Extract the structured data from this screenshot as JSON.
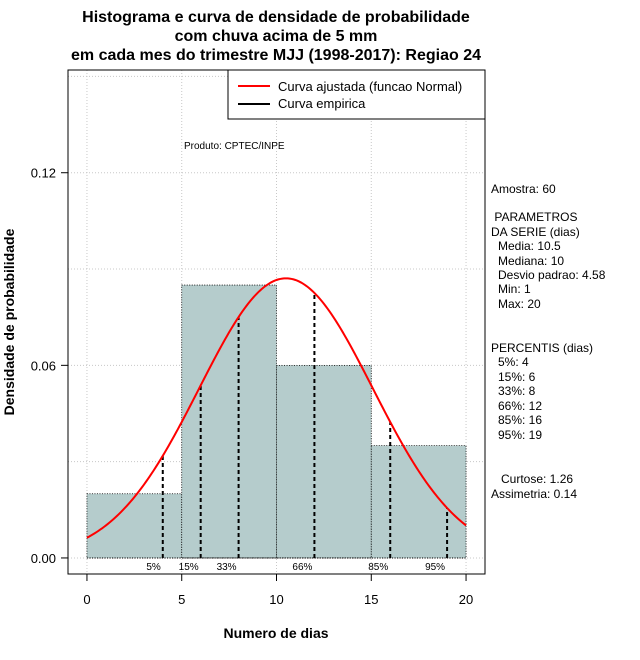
{
  "chart_data": {
    "type": "bar",
    "title": [
      "Histograma e curva de densidade de probabilidade",
      "com chuva acima de 5 mm",
      "em cada mes do trimestre MJJ (1998-2017): Regiao 24"
    ],
    "xlabel": "Numero de dias",
    "ylabel": "Densidade de probabilidade",
    "xlim": [
      -1,
      21
    ],
    "ylim": [
      -0.005,
      0.152
    ],
    "x_ticks": [
      {
        "value": 0,
        "label": "0"
      },
      {
        "value": 5,
        "label": "5"
      },
      {
        "value": 10,
        "label": "10"
      },
      {
        "value": 15,
        "label": "15"
      },
      {
        "value": 20,
        "label": "20"
      }
    ],
    "y_ticks": [
      {
        "value": 0,
        "label": "0.00"
      },
      {
        "value": 0.06,
        "label": "0.06"
      },
      {
        "value": 0.12,
        "label": "0.12"
      }
    ],
    "bins": [
      {
        "from": 0,
        "to": 5,
        "density": 0.02
      },
      {
        "from": 5,
        "to": 10,
        "density": 0.085
      },
      {
        "from": 10,
        "to": 15,
        "density": 0.06
      },
      {
        "from": 15,
        "to": 20,
        "density": 0.035
      }
    ],
    "fitted_curve": {
      "name": "Curva ajustada (funcao Normal)",
      "mean": 10.5,
      "sd": 4.58,
      "x_from": 0,
      "x_to": 20,
      "color": "#ff0000"
    },
    "empirical_curve": {
      "name": "Curva empirica",
      "color": "#000000"
    },
    "percentiles": [
      {
        "label": "5%",
        "x": 4
      },
      {
        "label": "15%",
        "x": 6
      },
      {
        "label": "33%",
        "x": 8
      },
      {
        "label": "66%",
        "x": 12
      },
      {
        "label": "85%",
        "x": 16
      },
      {
        "label": "95%",
        "x": 19
      }
    ],
    "grid": true,
    "legend_position": "top-right",
    "bar_color": "#b5cccc"
  },
  "annotations": {
    "producer": "Produto: CPTEC/INPE"
  },
  "stats_panel": {
    "sample": "Amostra: 60",
    "params_header_1": " PARAMETROS",
    "params_header_2": "DA SERIE (dias)",
    "params": [
      "Media: 10.5",
      "Mediana: 10",
      "Desvio padrao: 4.58",
      "Min: 1",
      "Max: 20"
    ],
    "percentis_header": "PERCENTIS (dias)",
    "percentis": [
      "5%: 4",
      "15%: 6",
      "33%: 8",
      "66%: 12",
      "85%: 16",
      "95%: 19"
    ],
    "kurtosis": "Curtose: 1.26",
    "skewness": "Assimetria: 0.14"
  }
}
